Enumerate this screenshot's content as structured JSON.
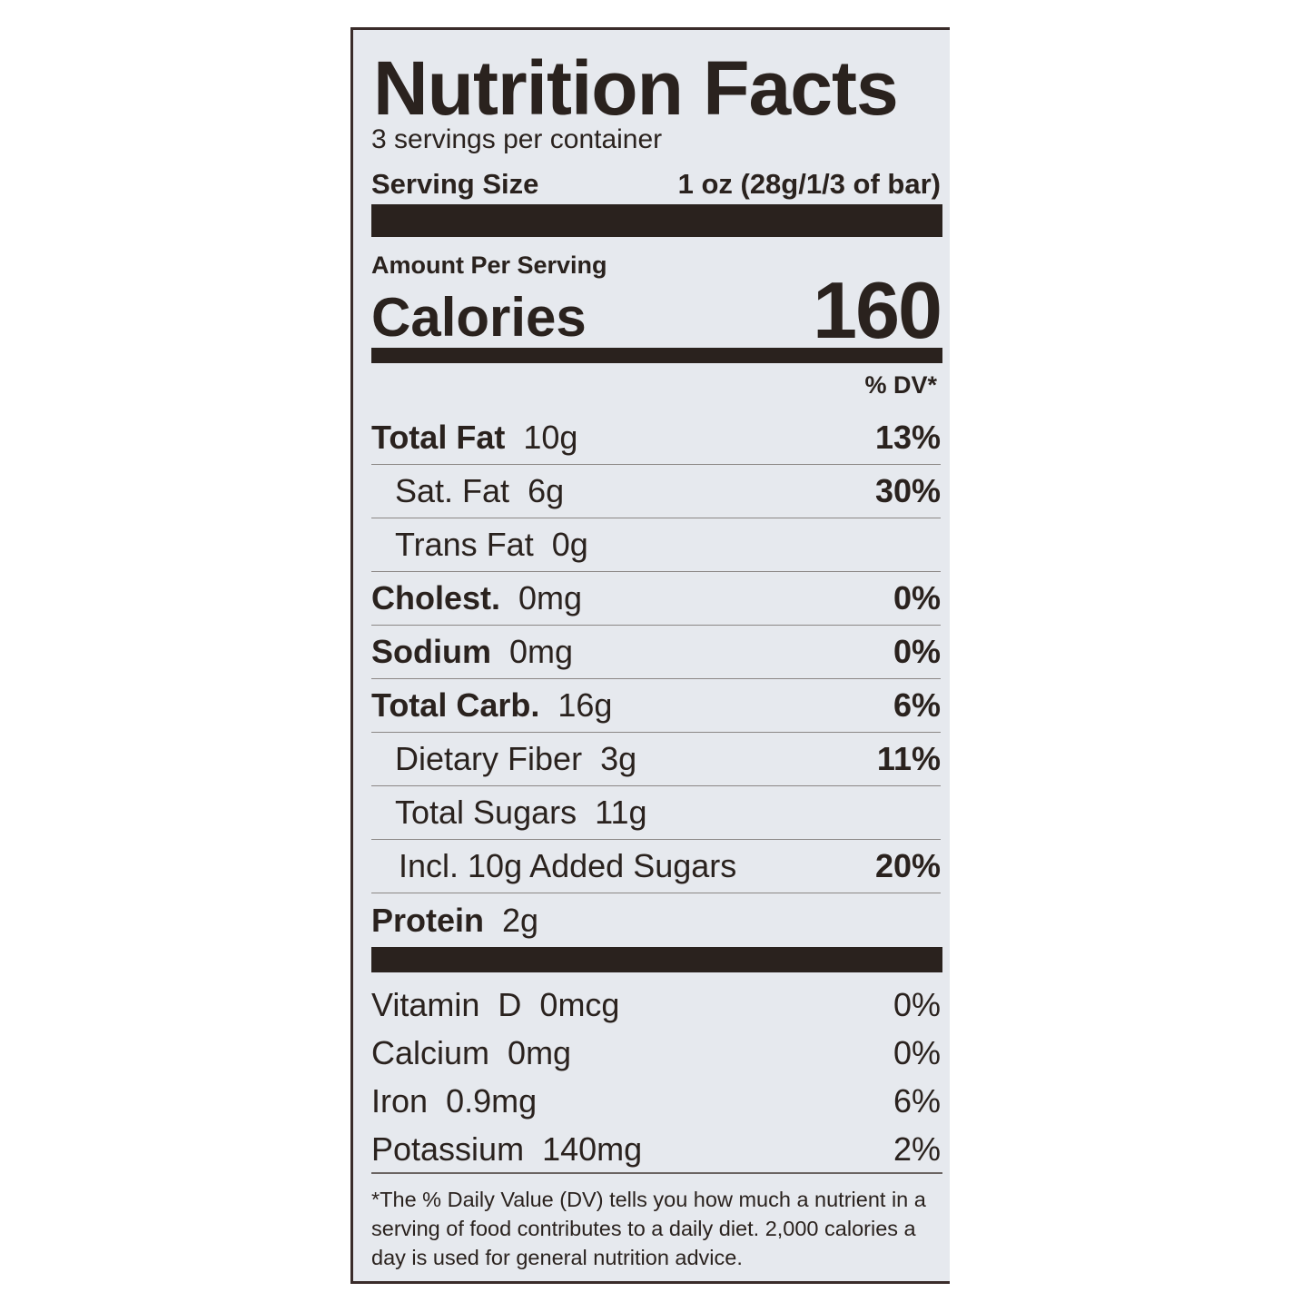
{
  "label": {
    "title": "Nutrition Facts",
    "servings_per_container": "3 servings per container",
    "serving_size_label": "Serving Size",
    "serving_size_value": "1 oz (28g/1/3 of bar)",
    "amount_per_serving": "Amount Per Serving",
    "calories_label": "Calories",
    "calories_value": "160",
    "dv_header": "% DV*",
    "nutrients": [
      {
        "name": "Total Fat",
        "amount": "10g",
        "dv": "13%",
        "bold": true,
        "indent": 0
      },
      {
        "name": "Sat. Fat",
        "amount": "6g",
        "dv": "30%",
        "bold": false,
        "indent": 1
      },
      {
        "name": "Trans Fat",
        "amount": "0g",
        "dv": "",
        "bold": false,
        "indent": 1
      },
      {
        "name": "Cholest.",
        "amount": "0mg",
        "dv": "0%",
        "bold": true,
        "indent": 0
      },
      {
        "name": "Sodium",
        "amount": "0mg",
        "dv": "0%",
        "bold": true,
        "indent": 0
      },
      {
        "name": "Total Carb.",
        "amount": "16g",
        "dv": "6%",
        "bold": true,
        "indent": 0
      },
      {
        "name": "Dietary Fiber",
        "amount": "3g",
        "dv": "11%",
        "bold": false,
        "indent": 1
      },
      {
        "name": "Total Sugars",
        "amount": "11g",
        "dv": "",
        "bold": false,
        "indent": 1
      },
      {
        "name": "Incl. 10g Added Sugars",
        "amount": "",
        "dv": "20%",
        "bold": false,
        "indent": 2
      },
      {
        "name": "Protein",
        "amount": "2g",
        "dv": "",
        "bold": true,
        "indent": 0
      }
    ],
    "vitamins": [
      {
        "name": "Vitamin  D",
        "amount": "0mcg",
        "dv": "0%"
      },
      {
        "name": "Calcium",
        "amount": "0mg",
        "dv": "0%"
      },
      {
        "name": "Iron",
        "amount": "0.9mg",
        "dv": "6%"
      },
      {
        "name": "Potassium",
        "amount": "140mg",
        "dv": "2%"
      }
    ],
    "footnote": "*The % Daily Value (DV) tells you how much a nutrient in a serving of food contributes to a daily diet. 2,000 calories a day is used for general nutrition advice."
  },
  "colors": {
    "ink": "#2a221e",
    "background": "#e6e9ee"
  }
}
